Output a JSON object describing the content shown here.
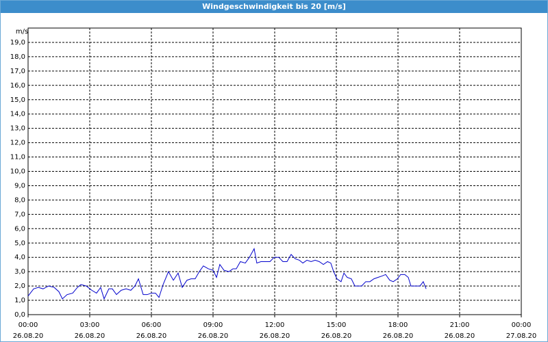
{
  "chart_data": {
    "type": "line",
    "title": "Windgeschwindigkeit bis 20 [m/s]",
    "y_unit": "m/s",
    "x": [
      0,
      0.27,
      0.5,
      0.73,
      1,
      1.27,
      1.5,
      1.67,
      1.9,
      2.17,
      2.4,
      2.57,
      2.83,
      3.1,
      3.33,
      3.53,
      3.7,
      3.93,
      4.1,
      4.3,
      4.53,
      4.77,
      5,
      5.2,
      5.37,
      5.6,
      5.8,
      6,
      6.2,
      6.37,
      6.57,
      6.83,
      7.07,
      7.3,
      7.5,
      7.73,
      7.93,
      8.13,
      8.33,
      8.53,
      8.77,
      9,
      9.17,
      9.33,
      9.53,
      9.77,
      9.97,
      10.13,
      10.33,
      10.57,
      10.77,
      11,
      11.13,
      11.33,
      11.57,
      11.77,
      11.97,
      12.2,
      12.4,
      12.6,
      12.8,
      13,
      13.2,
      13.37,
      13.57,
      13.77,
      13.97,
      14.17,
      14.37,
      14.57,
      14.73,
      14.87,
      15.03,
      15.23,
      15.37,
      15.53,
      15.73,
      15.9,
      16.07,
      16.23,
      16.43,
      16.63,
      16.83,
      17.03,
      17.23,
      17.4,
      17.6,
      17.77,
      17.97,
      18.13,
      18.33,
      18.5,
      18.63,
      18.83,
      19.07,
      19.23,
      19.37
    ],
    "series": [
      {
        "color": "#0000cc",
        "values": [
          1.3,
          1.8,
          1.9,
          1.8,
          2.0,
          1.9,
          1.6,
          1.1,
          1.4,
          1.5,
          1.9,
          2.1,
          2.0,
          1.7,
          1.5,
          1.9,
          1.1,
          1.8,
          1.8,
          1.4,
          1.7,
          1.8,
          1.7,
          2.0,
          2.5,
          1.4,
          1.4,
          1.5,
          1.5,
          1.2,
          2.1,
          3.0,
          2.4,
          2.9,
          1.9,
          2.4,
          2.5,
          2.5,
          3.0,
          3.4,
          3.2,
          3.1,
          2.6,
          3.5,
          3.1,
          3.0,
          3.2,
          3.2,
          3.7,
          3.6,
          4.0,
          4.6,
          3.6,
          3.7,
          3.7,
          3.7,
          4.0,
          4.0,
          3.7,
          3.7,
          4.2,
          3.9,
          3.8,
          3.6,
          3.8,
          3.7,
          3.8,
          3.7,
          3.5,
          3.7,
          3.6,
          3.0,
          2.5,
          2.3,
          2.9,
          2.6,
          2.5,
          2.0,
          2.0,
          2.0,
          2.3,
          2.3,
          2.5,
          2.6,
          2.7,
          2.8,
          2.4,
          2.3,
          2.5,
          2.8,
          2.8,
          2.6,
          2.0,
          2.0,
          2.0,
          2.3,
          1.8
        ]
      }
    ],
    "xlim": [
      0,
      24
    ],
    "xticks": [
      {
        "value": 0,
        "label": "00:00"
      },
      {
        "value": 3,
        "label": "03:00"
      },
      {
        "value": 6,
        "label": "06:00"
      },
      {
        "value": 9,
        "label": "09:00"
      },
      {
        "value": 12,
        "label": "12:00"
      },
      {
        "value": 15,
        "label": "15:00"
      },
      {
        "value": 18,
        "label": "18:00"
      },
      {
        "value": 21,
        "label": "21:00"
      },
      {
        "value": 24,
        "label": "00:00"
      }
    ],
    "xtick_dates": [
      "26.08.20",
      "26.08.20",
      "26.08.20",
      "26.08.20",
      "26.08.20",
      "26.08.20",
      "26.08.20",
      "26.08.20",
      "27.08.20"
    ],
    "ylim": [
      0,
      20
    ],
    "yticks": [
      {
        "value": 0,
        "label": "0,0"
      },
      {
        "value": 1,
        "label": "1,0"
      },
      {
        "value": 2,
        "label": "2,0"
      },
      {
        "value": 3,
        "label": "3,0"
      },
      {
        "value": 4,
        "label": "4,0"
      },
      {
        "value": 5,
        "label": "5,0"
      },
      {
        "value": 6,
        "label": "6,0"
      },
      {
        "value": 7,
        "label": "7,0"
      },
      {
        "value": 8,
        "label": "8,0"
      },
      {
        "value": 9,
        "label": "9,0"
      },
      {
        "value": 10,
        "label": "10,0"
      },
      {
        "value": 11,
        "label": "11,0"
      },
      {
        "value": 12,
        "label": "12,0"
      },
      {
        "value": 13,
        "label": "13,0"
      },
      {
        "value": 14,
        "label": "14,0"
      },
      {
        "value": 15,
        "label": "15,0"
      },
      {
        "value": 16,
        "label": "16,0"
      },
      {
        "value": 17,
        "label": "17,0"
      },
      {
        "value": 18,
        "label": "18,0"
      },
      {
        "value": 19,
        "label": "19,0"
      }
    ],
    "grid": true
  }
}
